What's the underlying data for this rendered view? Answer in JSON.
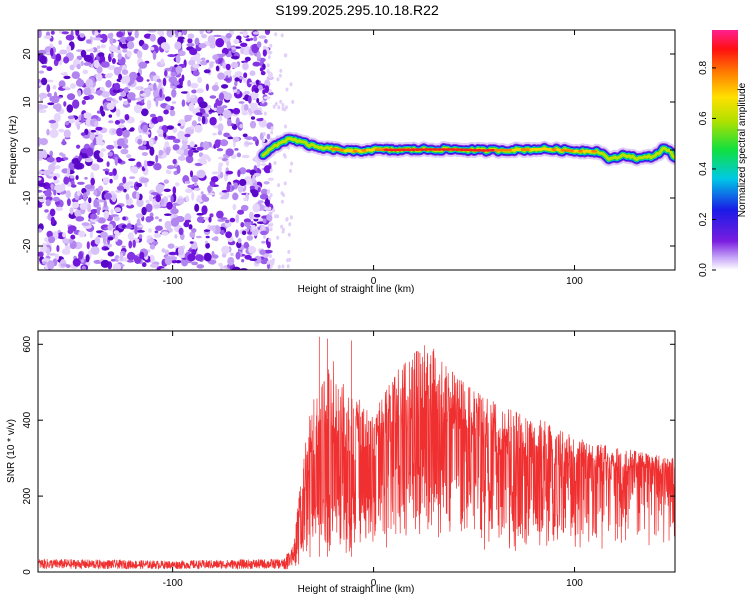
{
  "title": "S199.2025.295.10.18.R22",
  "chart_data": [
    {
      "type": "heatmap",
      "xlabel": "Height of straight line (km)",
      "ylabel": "Frequency (Hz)",
      "xlim": [
        -167,
        150
      ],
      "ylim": [
        -25,
        25
      ],
      "xticks": [
        -100,
        0,
        100
      ],
      "xtick_labels": [
        "-100",
        "0",
        "100"
      ],
      "yticks": [
        -20,
        -10,
        0,
        10,
        20
      ],
      "ytick_labels": [
        "-20",
        "-10",
        "0",
        "10",
        "20"
      ],
      "noise_region_km": [
        -167,
        -55
      ],
      "signal_start_km": -55,
      "ridge": {
        "x": [
          -57,
          -50,
          -42,
          -35,
          -28,
          -20,
          -10,
          0,
          10,
          25,
          40,
          55,
          70,
          85,
          100,
          112,
          118,
          125,
          132,
          140,
          145,
          150
        ],
        "frequency": [
          -1.5,
          0.5,
          2.5,
          1.5,
          0.5,
          0.2,
          -0.3,
          0.1,
          0,
          0.1,
          0.1,
          -0.1,
          0,
          0.2,
          -0.2,
          -0.3,
          -2.0,
          -1.0,
          -1.8,
          -1.2,
          0.5,
          -1.5
        ]
      },
      "colorbar": {
        "label": "Normalized spectral amplitude",
        "range": [
          0,
          0.95
        ],
        "ticks": [
          0.0,
          0.2,
          0.4,
          0.6,
          0.8
        ],
        "tick_labels": [
          "0.0",
          "0.2",
          "0.4",
          "0.6",
          "0.8"
        ]
      }
    },
    {
      "type": "line",
      "xlabel": "Height of straight line (km)",
      "ylabel": "SNR (10 * v/v)",
      "xlim": [
        -167,
        150
      ],
      "ylim": [
        0,
        635
      ],
      "xticks": [
        -100,
        0,
        100
      ],
      "xtick_labels": [
        "-100",
        "0",
        "100"
      ],
      "yticks": [
        0,
        200,
        400,
        600
      ],
      "ytick_labels": [
        "0",
        "200",
        "400",
        "600"
      ],
      "color": "#f03030",
      "envelope": {
        "x": [
          -167,
          -100,
          -45,
          -40,
          -35,
          -30,
          -20,
          -10,
          0,
          10,
          20,
          25,
          30,
          40,
          50,
          60,
          70,
          80,
          90,
          100,
          110,
          120,
          130,
          140,
          150
        ],
        "upper": [
          35,
          30,
          35,
          70,
          310,
          470,
          560,
          460,
          440,
          530,
          580,
          610,
          590,
          530,
          480,
          450,
          430,
          410,
          390,
          360,
          340,
          330,
          320,
          310,
          300
        ],
        "lower": [
          8,
          8,
          8,
          20,
          60,
          90,
          110,
          130,
          160,
          170,
          180,
          190,
          200,
          190,
          180,
          170,
          160,
          160,
          170,
          180,
          190,
          200,
          210,
          210,
          210
        ]
      },
      "spikes": [
        {
          "x": -27,
          "y": 620
        },
        {
          "x": -23,
          "y": 615
        },
        {
          "x": -11,
          "y": 610
        }
      ]
    }
  ]
}
